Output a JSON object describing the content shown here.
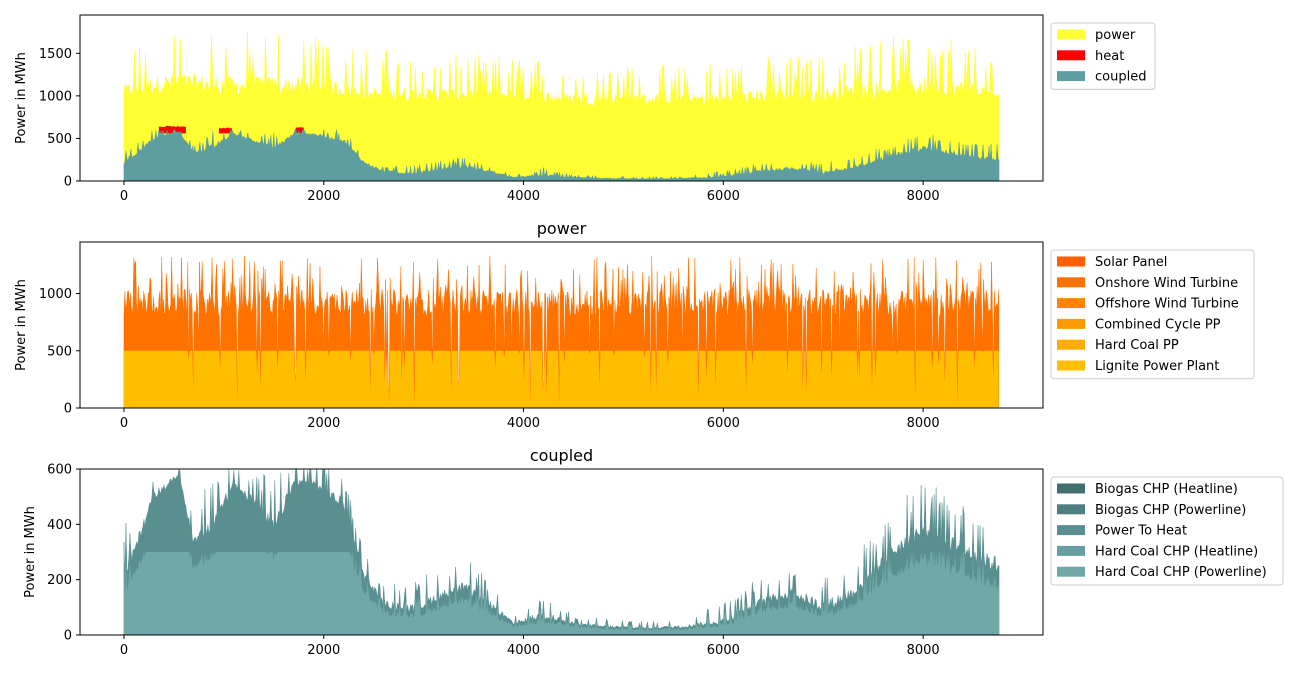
{
  "chart_data": [
    {
      "type": "area",
      "title": "",
      "xlabel": "",
      "ylabel": "Power in MWh",
      "xlim": [
        -440,
        9200
      ],
      "ylim": [
        0,
        1950
      ],
      "xticks": [
        0,
        2000,
        4000,
        6000,
        8000
      ],
      "yticks": [
        0,
        500,
        1000,
        1500
      ],
      "x_range": [
        0,
        8760
      ],
      "legend_position": "right, outside plot, top",
      "series": [
        {
          "name": "power",
          "color": "#ffff33",
          "profile_x": [
            0,
            500,
            1000,
            1500,
            2000,
            2500,
            3000,
            3500,
            4000,
            4500,
            5000,
            5500,
            6000,
            6500,
            7000,
            7500,
            8000,
            8500,
            8760
          ],
          "mean": [
            1050,
            1150,
            1100,
            1100,
            1100,
            1000,
            1000,
            1000,
            1000,
            950,
            950,
            950,
            950,
            1000,
            1000,
            1050,
            1100,
            1050,
            1000
          ],
          "peak": [
            1500,
            1820,
            1800,
            1760,
            1760,
            1560,
            1500,
            1490,
            1470,
            1380,
            1380,
            1380,
            1400,
            1480,
            1510,
            1660,
            1760,
            1660,
            1300
          ]
        },
        {
          "name": "heat",
          "color": "#ff0000",
          "segments": [
            [
              350,
              620,
              650
            ],
            [
              950,
              1080,
              630
            ],
            [
              1720,
              1800,
              640
            ]
          ]
        },
        {
          "name": "coupled",
          "color": "#5f9ea0",
          "profile_x": [
            0,
            100,
            300,
            550,
            700,
            900,
            1100,
            1300,
            1500,
            1700,
            1900,
            2200,
            2400,
            2600,
            2900,
            3100,
            3400,
            3700,
            3900,
            4200,
            4500,
            4800,
            5200,
            5600,
            6000,
            6400,
            6700,
            7000,
            7300,
            7700,
            8000,
            8300,
            8600,
            8760
          ],
          "mean": [
            220,
            300,
            500,
            580,
            330,
            400,
            550,
            480,
            380,
            550,
            550,
            470,
            220,
            110,
            90,
            130,
            170,
            100,
            40,
            70,
            40,
            30,
            25,
            30,
            50,
            120,
            150,
            100,
            150,
            300,
            380,
            330,
            270,
            250
          ],
          "peak": [
            420,
            420,
            610,
            610,
            440,
            600,
            610,
            600,
            570,
            620,
            620,
            600,
            320,
            180,
            200,
            230,
            290,
            180,
            70,
            160,
            70,
            60,
            50,
            60,
            120,
            220,
            260,
            230,
            280,
            460,
            560,
            500,
            430,
            440
          ]
        }
      ]
    },
    {
      "type": "area",
      "title": "power",
      "xlabel": "",
      "ylabel": "Power in MWh",
      "xlim": [
        -440,
        9200
      ],
      "ylim": [
        0,
        1450
      ],
      "xticks": [
        0,
        2000,
        4000,
        6000,
        8000
      ],
      "yticks": [
        0,
        500,
        1000
      ],
      "x_range": [
        0,
        8760
      ],
      "legend_position": "right, outside plot, top",
      "series": [
        {
          "name": "Solar Panel",
          "color": "#ff5f00"
        },
        {
          "name": "Onshore Wind Turbine",
          "color": "#ff7200",
          "mean_total": 920,
          "peak_total": 1330,
          "min_total": 20
        },
        {
          "name": "Offshore Wind Turbine",
          "color": "#ff8500"
        },
        {
          "name": "Combined Cycle PP",
          "color": "#ff9900"
        },
        {
          "name": "Hard Coal PP",
          "color": "#ffac00",
          "base_level": 500
        },
        {
          "name": "Lignite Power Plant",
          "color": "#ffbf00"
        }
      ]
    },
    {
      "type": "area",
      "title": "coupled",
      "xlabel": "",
      "ylabel": "Power in MWh",
      "xlim": [
        -440,
        9200
      ],
      "ylim": [
        0,
        600
      ],
      "xticks": [
        0,
        2000,
        4000,
        6000,
        8000
      ],
      "yticks": [
        0,
        200,
        400,
        600
      ],
      "x_range": [
        0,
        8760
      ],
      "legend_position": "right, outside plot, top",
      "series": [
        {
          "name": "Biogas CHP (Heatline)",
          "color": "#436e70"
        },
        {
          "name": "Biogas CHP (Powerline)",
          "color": "#4f7f81"
        },
        {
          "name": "Power To Heat",
          "color": "#5a8f91"
        },
        {
          "name": "Hard Coal CHP (Heatline)",
          "color": "#659fa1"
        },
        {
          "name": "Hard Coal CHP (Powerline)",
          "color": "#70a8a8"
        }
      ],
      "total_profile_x": [
        0,
        100,
        300,
        550,
        700,
        900,
        1100,
        1300,
        1500,
        1700,
        1900,
        2200,
        2400,
        2600,
        2900,
        3100,
        3400,
        3700,
        3900,
        4200,
        4500,
        4800,
        5200,
        5600,
        6000,
        6400,
        6700,
        7000,
        7300,
        7700,
        8000,
        8300,
        8600,
        8760
      ],
      "total_mean": [
        220,
        300,
        500,
        580,
        330,
        400,
        550,
        480,
        380,
        550,
        550,
        470,
        220,
        110,
        90,
        130,
        170,
        100,
        40,
        70,
        40,
        30,
        25,
        30,
        50,
        120,
        150,
        100,
        150,
        300,
        380,
        330,
        270,
        250
      ],
      "total_peak": [
        420,
        420,
        610,
        610,
        440,
        600,
        610,
        600,
        570,
        620,
        620,
        600,
        320,
        180,
        200,
        230,
        290,
        180,
        70,
        160,
        70,
        60,
        50,
        60,
        120,
        220,
        260,
        230,
        280,
        460,
        560,
        500,
        430,
        440
      ],
      "darker_band_max": 300
    }
  ]
}
